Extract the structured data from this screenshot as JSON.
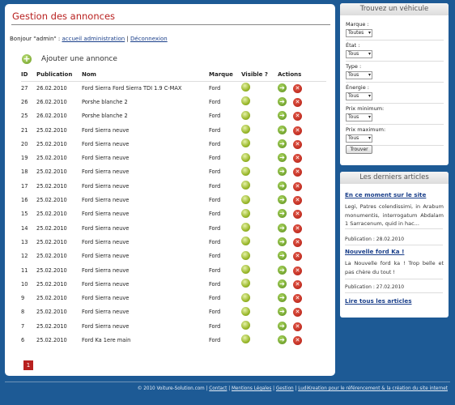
{
  "main": {
    "title": "Gestion des annonces",
    "greeting": {
      "prefix": "Bonjour \"admin\" : ",
      "admin_link": "accueil administration",
      "sep": " | ",
      "logout_link": "Déconnexion"
    },
    "add_label": "Ajouter une annonce",
    "columns": {
      "id": "ID",
      "pub": "Publication",
      "nom": "Nom",
      "marque": "Marque",
      "visible": "Visible ?",
      "actions": "Actions"
    },
    "rows": [
      {
        "id": "27",
        "pub": "26.02.2010",
        "nom": "Ford Sierra Ford Sierra TDI 1.9 C-MAX",
        "marque": "Ford"
      },
      {
        "id": "26",
        "pub": "26.02.2010",
        "nom": "Porshe blanche 2",
        "marque": "Ford"
      },
      {
        "id": "25",
        "pub": "26.02.2010",
        "nom": "Porshe blanche 2",
        "marque": "Ford"
      },
      {
        "id": "21",
        "pub": "25.02.2010",
        "nom": "Ford Sierra neuve",
        "marque": "Ford"
      },
      {
        "id": "20",
        "pub": "25.02.2010",
        "nom": "Ford Sierra neuve",
        "marque": "Ford"
      },
      {
        "id": "19",
        "pub": "25.02.2010",
        "nom": "Ford Sierra neuve",
        "marque": "Ford"
      },
      {
        "id": "18",
        "pub": "25.02.2010",
        "nom": "Ford Sierra neuve",
        "marque": "Ford"
      },
      {
        "id": "17",
        "pub": "25.02.2010",
        "nom": "Ford Sierra neuve",
        "marque": "Ford"
      },
      {
        "id": "16",
        "pub": "25.02.2010",
        "nom": "Ford Sierra neuve",
        "marque": "Ford"
      },
      {
        "id": "15",
        "pub": "25.02.2010",
        "nom": "Ford Sierra neuve",
        "marque": "Ford"
      },
      {
        "id": "14",
        "pub": "25.02.2010",
        "nom": "Ford Sierra neuve",
        "marque": "Ford"
      },
      {
        "id": "13",
        "pub": "25.02.2010",
        "nom": "Ford Sierra neuve",
        "marque": "Ford"
      },
      {
        "id": "12",
        "pub": "25.02.2010",
        "nom": "Ford Sierra neuve",
        "marque": "Ford"
      },
      {
        "id": "11",
        "pub": "25.02.2010",
        "nom": "Ford Sierra neuve",
        "marque": "Ford"
      },
      {
        "id": "10",
        "pub": "25.02.2010",
        "nom": "Ford Sierra neuve",
        "marque": "Ford"
      },
      {
        "id": "9",
        "pub": "25.02.2010",
        "nom": "Ford Sierra neuve",
        "marque": "Ford"
      },
      {
        "id": "8",
        "pub": "25.02.2010",
        "nom": "Ford Sierra neuve",
        "marque": "Ford"
      },
      {
        "id": "7",
        "pub": "25.02.2010",
        "nom": "Ford Sierra neuve",
        "marque": "Ford"
      },
      {
        "id": "6",
        "pub": "25.02.2010",
        "nom": "Ford Ka 1ere main",
        "marque": "Ford"
      }
    ],
    "pager": {
      "current": "1"
    }
  },
  "search": {
    "title": "Trouvez un véhicule",
    "fields": [
      {
        "label": "Marque :",
        "value": "Toutes"
      },
      {
        "label": "État :",
        "value": "Tous"
      },
      {
        "label": "Type :",
        "value": "Tous"
      },
      {
        "label": "Énergie :",
        "value": "Tous"
      },
      {
        "label": "Prix minimum:",
        "value": "Tous"
      },
      {
        "label": "Prix maximum:",
        "value": "Tous"
      }
    ],
    "button": "Trouver"
  },
  "articles": {
    "title": "Les derniers articles",
    "items": [
      {
        "title": "En ce moment sur le site",
        "text": "Legi, Patres colendissimi, in Arabum monumentis, interrogatum Abdalam 1 Sarracenum, quid in hac...",
        "meta": "Publication : 28.02.2010"
      },
      {
        "title": "Nouvelle ford Ka !",
        "text": "La Nouvelle ford ka ! Trop belle et pas chère du tout !",
        "meta": "Publication : 27.02.2010"
      }
    ],
    "all_link": "Lire tous les articles"
  },
  "footer": {
    "copyright": "© 2010 Voiture-Solution.com",
    "links": [
      "Contact",
      "Mentions Légales",
      "Gestion",
      "LudiKreation pour le référencement & la création du site internet"
    ]
  },
  "colors": {
    "background": "#1d5a95",
    "accent": "#b8201f",
    "link": "#1a3f8a"
  },
  "icons": {
    "add": "add-circle-icon",
    "visible": "visible-dot-icon",
    "edit": "arrow-right-icon",
    "delete": "delete-x-icon"
  }
}
